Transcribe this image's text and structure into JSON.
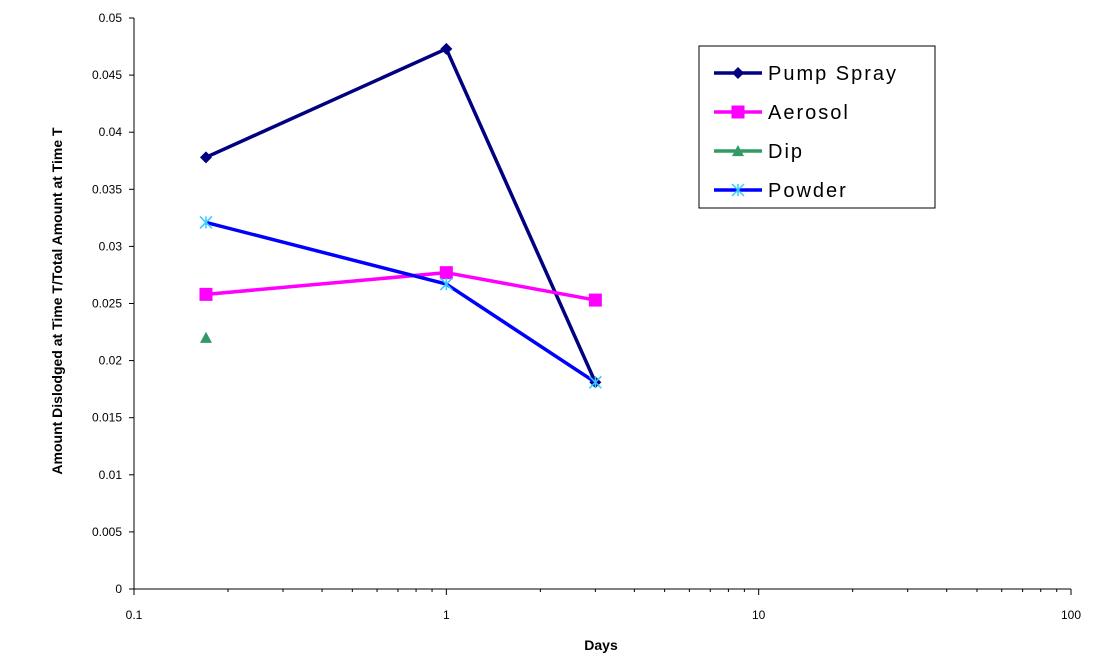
{
  "chart_data": {
    "type": "line",
    "xlabel": "Days",
    "ylabel": "Amount Dislodged at Time T/Total Amount at Time T",
    "x_scale": "log",
    "xlim": [
      0.1,
      100
    ],
    "ylim": [
      0,
      0.05
    ],
    "x_ticks": [
      0.1,
      1,
      10,
      100
    ],
    "x_tick_labels": [
      "0.1",
      "1",
      "10",
      "100"
    ],
    "y_ticks": [
      0,
      0.005,
      0.01,
      0.015,
      0.02,
      0.025,
      0.03,
      0.035,
      0.04,
      0.045,
      0.05
    ],
    "y_tick_labels": [
      "0",
      "0.005",
      "0.01",
      "0.015",
      "0.02",
      "0.025",
      "0.03",
      "0.035",
      "0.04",
      "0.045",
      "0.05"
    ],
    "grid": false,
    "legend_position": "top-right",
    "series": [
      {
        "name": "Pump Spray",
        "color": "#000080",
        "marker": "diamond",
        "x": [
          0.17,
          1,
          3
        ],
        "y": [
          0.0378,
          0.0473,
          0.0181
        ]
      },
      {
        "name": "Aerosol",
        "color": "#ff00ff",
        "marker": "square",
        "x": [
          0.17,
          1,
          3
        ],
        "y": [
          0.0258,
          0.0277,
          0.0253
        ]
      },
      {
        "name": "Dip",
        "color": "#339966",
        "marker": "triangle",
        "x": [
          0.17
        ],
        "y": [
          0.022
        ]
      },
      {
        "name": "Powder",
        "color": "#0000ff",
        "marker": "x-star",
        "marker_color": "#33ccff",
        "x": [
          0.17,
          1,
          3
        ],
        "y": [
          0.0321,
          0.0267,
          0.0181
        ]
      }
    ]
  }
}
